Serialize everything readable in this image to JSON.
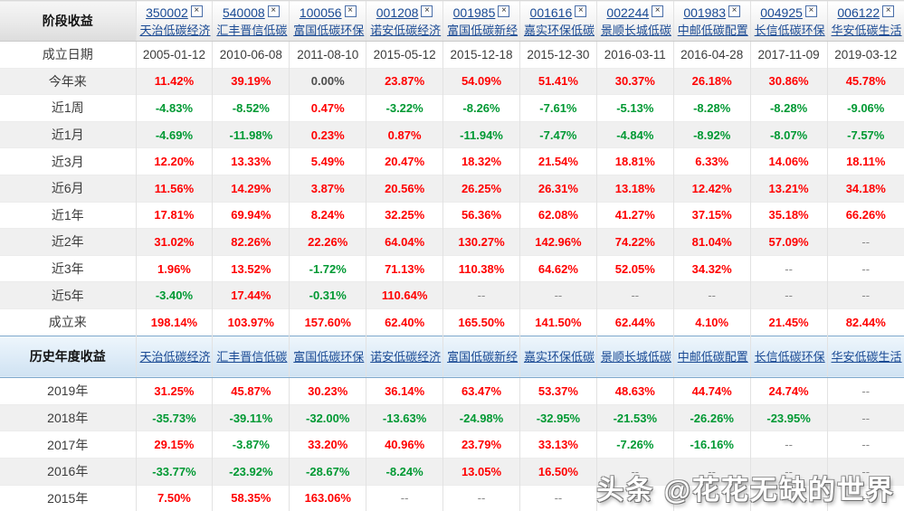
{
  "colors": {
    "positive": "#ff0000",
    "negative": "#009933",
    "link": "#1a4a94",
    "band_border": "#7fa9cc",
    "alt_row": "#f0f0f0"
  },
  "watermark": "头条 @花花无缺的世界",
  "close_glyph": "×",
  "table": {
    "corner_label": "阶段收益",
    "funds": [
      {
        "code": "350002",
        "name": "天治低碳经济"
      },
      {
        "code": "540008",
        "name": "汇丰晋信低碳"
      },
      {
        "code": "100056",
        "name": "富国低碳环保"
      },
      {
        "code": "001208",
        "name": "诺安低碳经济"
      },
      {
        "code": "001985",
        "name": "富国低碳新经"
      },
      {
        "code": "001616",
        "name": "嘉实环保低碳"
      },
      {
        "code": "002244",
        "name": "景顺长城低碳"
      },
      {
        "code": "001983",
        "name": "中邮低碳配置"
      },
      {
        "code": "004925",
        "name": "长信低碳环保"
      },
      {
        "code": "006122",
        "name": "华安低碳生活"
      }
    ],
    "rows": [
      {
        "label": "成立日期",
        "kind": "date",
        "values": [
          "2005-01-12",
          "2010-06-08",
          "2011-08-10",
          "2015-05-12",
          "2015-12-18",
          "2015-12-30",
          "2016-03-11",
          "2016-04-28",
          "2017-11-09",
          "2019-03-12"
        ]
      },
      {
        "label": "今年来",
        "kind": "pct",
        "values": [
          "11.42%",
          "39.19%",
          "0.00%",
          "23.87%",
          "54.09%",
          "51.41%",
          "30.37%",
          "26.18%",
          "30.86%",
          "45.78%"
        ]
      },
      {
        "label": "近1周",
        "kind": "pct",
        "values": [
          "-4.83%",
          "-8.52%",
          "0.47%",
          "-3.22%",
          "-8.26%",
          "-7.61%",
          "-5.13%",
          "-8.28%",
          "-8.28%",
          "-9.06%"
        ]
      },
      {
        "label": "近1月",
        "kind": "pct",
        "values": [
          "-4.69%",
          "-11.98%",
          "0.23%",
          "0.87%",
          "-11.94%",
          "-7.47%",
          "-4.84%",
          "-8.92%",
          "-8.07%",
          "-7.57%"
        ]
      },
      {
        "label": "近3月",
        "kind": "pct",
        "values": [
          "12.20%",
          "13.33%",
          "5.49%",
          "20.47%",
          "18.32%",
          "21.54%",
          "18.81%",
          "6.33%",
          "14.06%",
          "18.11%"
        ]
      },
      {
        "label": "近6月",
        "kind": "pct",
        "values": [
          "11.56%",
          "14.29%",
          "3.87%",
          "20.56%",
          "26.25%",
          "26.31%",
          "13.18%",
          "12.42%",
          "13.21%",
          "34.18%"
        ]
      },
      {
        "label": "近1年",
        "kind": "pct",
        "values": [
          "17.81%",
          "69.94%",
          "8.24%",
          "32.25%",
          "56.36%",
          "62.08%",
          "41.27%",
          "37.15%",
          "35.18%",
          "66.26%"
        ]
      },
      {
        "label": "近2年",
        "kind": "pct",
        "values": [
          "31.02%",
          "82.26%",
          "22.26%",
          "64.04%",
          "130.27%",
          "142.96%",
          "74.22%",
          "81.04%",
          "57.09%",
          "--"
        ]
      },
      {
        "label": "近3年",
        "kind": "pct",
        "values": [
          "1.96%",
          "13.52%",
          "-1.72%",
          "71.13%",
          "110.38%",
          "64.62%",
          "52.05%",
          "34.32%",
          "--",
          "--"
        ]
      },
      {
        "label": "近5年",
        "kind": "pct",
        "values": [
          "-3.40%",
          "17.44%",
          "-0.31%",
          "110.64%",
          "--",
          "--",
          "--",
          "--",
          "--",
          "--"
        ]
      },
      {
        "label": "成立来",
        "kind": "pct",
        "values": [
          "198.14%",
          "103.97%",
          "157.60%",
          "62.40%",
          "165.50%",
          "141.50%",
          "62.44%",
          "4.10%",
          "21.45%",
          "82.44%"
        ]
      }
    ],
    "history": {
      "corner_label": "历史年度收益",
      "rows": [
        {
          "label": "2019年",
          "kind": "pct",
          "values": [
            "31.25%",
            "45.87%",
            "30.23%",
            "36.14%",
            "63.47%",
            "53.37%",
            "48.63%",
            "44.74%",
            "24.74%",
            "--"
          ]
        },
        {
          "label": "2018年",
          "kind": "pct",
          "values": [
            "-35.73%",
            "-39.11%",
            "-32.00%",
            "-13.63%",
            "-24.98%",
            "-32.95%",
            "-21.53%",
            "-26.26%",
            "-23.95%",
            "--"
          ]
        },
        {
          "label": "2017年",
          "kind": "pct",
          "values": [
            "29.15%",
            "-3.87%",
            "33.20%",
            "40.96%",
            "23.79%",
            "33.13%",
            "-7.26%",
            "-16.16%",
            "--",
            "--"
          ]
        },
        {
          "label": "2016年",
          "kind": "pct",
          "values": [
            "-33.77%",
            "-23.92%",
            "-28.67%",
            "-8.24%",
            "13.05%",
            "16.50%",
            "--",
            "--",
            "--",
            "--"
          ]
        },
        {
          "label": "2015年",
          "kind": "pct",
          "values": [
            "7.50%",
            "58.35%",
            "163.06%",
            "--",
            "--",
            "--",
            "--",
            "--",
            "--",
            "--"
          ]
        }
      ]
    }
  }
}
